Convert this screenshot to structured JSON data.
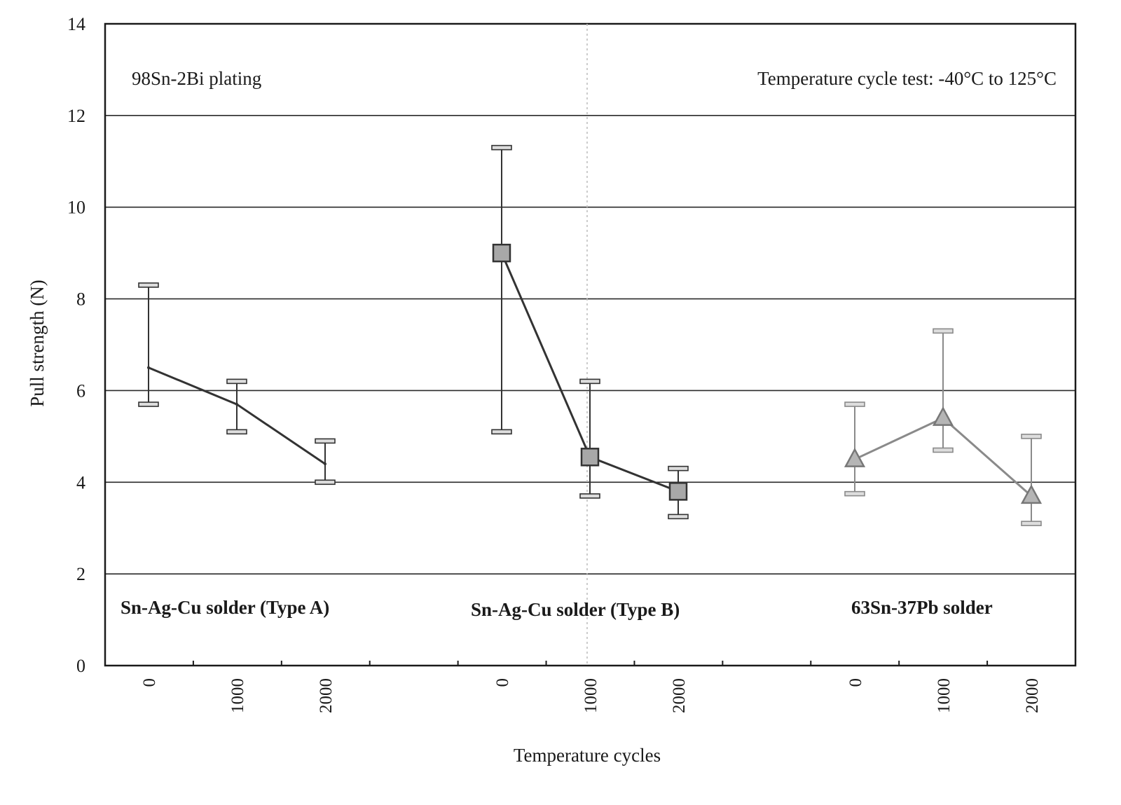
{
  "chart_data": {
    "type": "line",
    "title": "",
    "xlabel": "Temperature cycles",
    "ylabel": "Pull strength (N)",
    "ylim": [
      0,
      14
    ],
    "yticks": [
      "0",
      "2",
      "4",
      "6",
      "8",
      "10",
      "12",
      "14"
    ],
    "grid": "horizontal",
    "annotations": {
      "plating": "98Sn-2Bi  plating",
      "test": "Temperature cycle test:  -40°C to 125°C"
    },
    "groups": [
      {
        "name": "Sn-Ag-Cu solder (Type A)",
        "marker": "none",
        "color": "#333333",
        "x": [
          "0",
          "1000",
          "2000"
        ],
        "values": [
          6.5,
          5.7,
          4.4
        ],
        "err_high": [
          8.3,
          6.2,
          4.9
        ],
        "err_low": [
          5.7,
          5.1,
          4.0
        ]
      },
      {
        "name": "Sn-Ag-Cu solder (Type B)",
        "marker": "square",
        "color": "#333333",
        "x": [
          "0",
          "1000",
          "2000"
        ],
        "values": [
          9.0,
          4.55,
          3.8
        ],
        "err_high": [
          11.3,
          6.2,
          4.3
        ],
        "err_low": [
          5.1,
          3.7,
          3.25
        ]
      },
      {
        "name": "63Sn-37Pb solder",
        "marker": "triangle",
        "color": "#8a8a8a",
        "x": [
          "0",
          "1000",
          "2000"
        ],
        "values": [
          4.5,
          5.4,
          3.7
        ],
        "err_high": [
          5.7,
          7.3,
          5.0
        ],
        "err_low": [
          3.75,
          4.7,
          3.1
        ]
      }
    ]
  }
}
